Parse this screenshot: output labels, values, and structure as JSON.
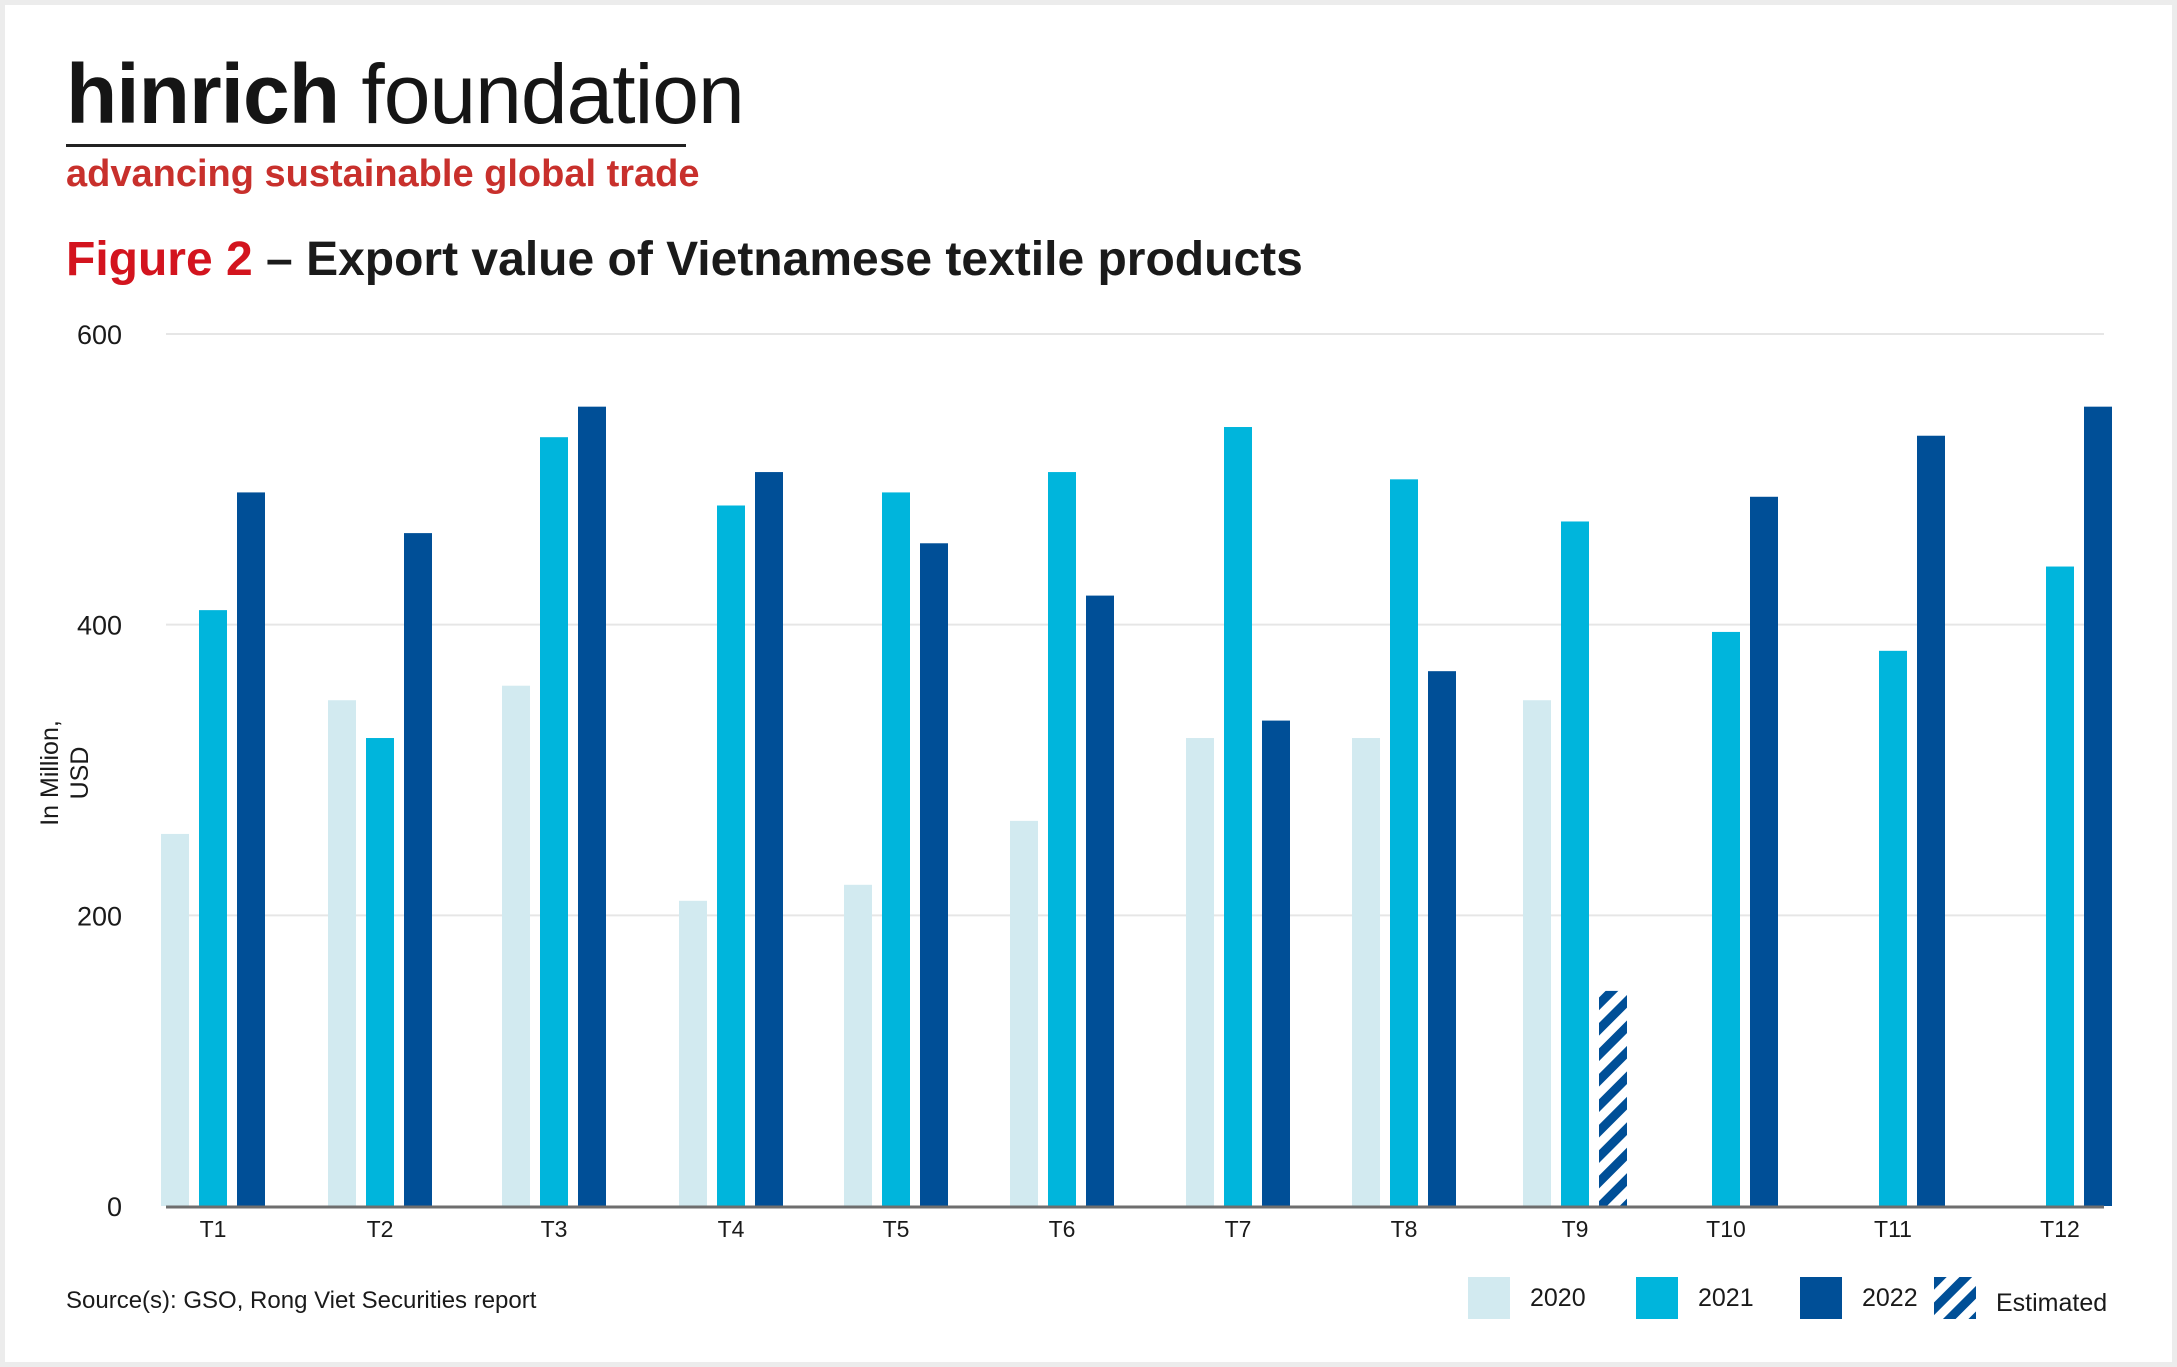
{
  "brand": {
    "name_bold": "hinrich",
    "name_light": " foundation",
    "tagline": "advancing sustainable global trade"
  },
  "figure": {
    "label": "Figure 2",
    "title": " – Export value of Vietnamese textile products"
  },
  "source": "Source(s): GSO, Rong Viet Securities report",
  "colors": {
    "c2020": "#d2eaf0",
    "c2021": "#00b5dc",
    "c2022": "#004f97",
    "estimated": "#004f97",
    "brand_red": "#c8302c",
    "title_red": "#d3141e"
  },
  "chart_data": {
    "type": "bar",
    "categories": [
      "T1",
      "T2",
      "T3",
      "T4",
      "T5",
      "T6",
      "T7",
      "T8",
      "T9",
      "T10",
      "T11",
      "T12"
    ],
    "series": [
      {
        "name": "2020",
        "values": [
          256,
          348,
          358,
          210,
          221,
          265,
          322,
          322,
          348,
          null,
          null,
          null
        ]
      },
      {
        "name": "2021",
        "values": [
          410,
          322,
          529,
          482,
          491,
          505,
          536,
          500,
          471,
          395,
          382,
          440
        ]
      },
      {
        "name": "2022",
        "values": [
          491,
          463,
          550,
          505,
          456,
          420,
          334,
          368,
          null,
          488,
          530,
          550
        ]
      },
      {
        "name": "Estimated",
        "values": [
          null,
          null,
          null,
          null,
          null,
          null,
          null,
          null,
          148,
          null,
          null,
          null
        ]
      }
    ],
    "xlabel": "",
    "ylabel": "In Million, USD",
    "ylim": [
      0,
      600
    ],
    "yticks": [
      0,
      200,
      400,
      600
    ],
    "grid": true,
    "legend_position": "bottom-right"
  }
}
